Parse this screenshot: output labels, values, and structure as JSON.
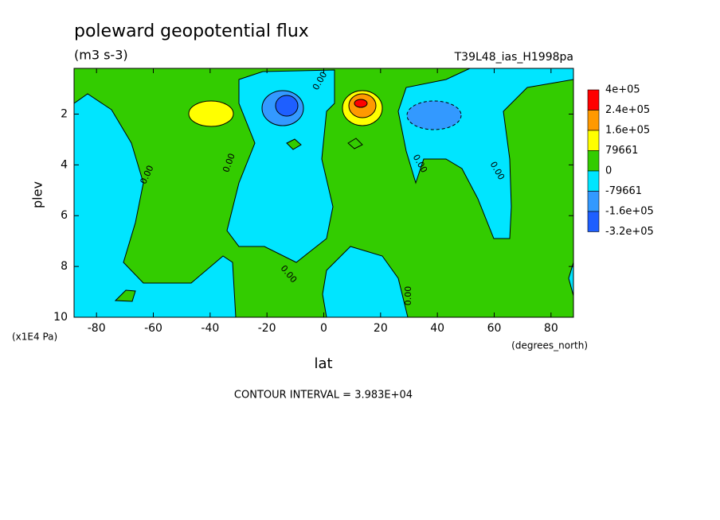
{
  "chart_data": {
    "type": "contour",
    "title": "poleward geopotential flux",
    "subtitle": "(m3 s-3)",
    "run_label": "T39L48_ias_H1998pa",
    "x_label": "lat",
    "x_units": "(degrees_north)",
    "y_label": "plev",
    "y_units": "(x1E4 Pa)",
    "footer": "CONTOUR INTERVAL = 3.983E+04",
    "xlim": [
      -87.9,
      87.9
    ],
    "xticks": [
      -80,
      -60,
      -40,
      -20,
      0,
      20,
      40,
      60,
      80
    ],
    "ylim": [
      10,
      0.2
    ],
    "yticks": [
      2,
      4,
      6,
      8,
      10
    ],
    "contour_labels": [
      "0.00",
      "0.00",
      "0.00",
      "0.00",
      "0.00",
      "0.00",
      "0.00"
    ],
    "colorbar": {
      "levels": [
        {
          "value": 400000,
          "label": "4e+05"
        },
        {
          "value": 240000,
          "label": "2.4e+05"
        },
        {
          "value": 160000,
          "label": "1.6e+05"
        },
        79661,
        0,
        {
          "value": -79661,
          "label": "-79661"
        },
        {
          "value": -160000,
          "label": "-1.6e+05"
        },
        {
          "value": -320000,
          "label": "-3.2e+05"
        }
      ],
      "colors": [
        "#ff0000",
        "#ff9900",
        "#ffff00",
        "#33cc00",
        "#00e5ff",
        "#3399ff",
        "#1e5fff"
      ]
    }
  }
}
